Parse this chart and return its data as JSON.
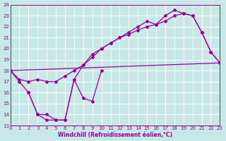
{
  "xlabel": "Windchill (Refroidissement éolien,°C)",
  "xlim": [
    0,
    23
  ],
  "ylim": [
    13,
    24
  ],
  "xticks": [
    0,
    1,
    2,
    3,
    4,
    5,
    6,
    7,
    8,
    9,
    10,
    11,
    12,
    13,
    14,
    15,
    16,
    17,
    18,
    19,
    20,
    21,
    22,
    23
  ],
  "yticks": [
    13,
    14,
    15,
    16,
    17,
    18,
    19,
    20,
    21,
    22,
    23,
    24
  ],
  "bg_color": "#c8e8e8",
  "line_color": "#990099",
  "grid_color": "#ffffff",
  "line1_x": [
    0,
    1,
    2,
    3,
    4,
    5,
    6,
    7,
    8,
    9,
    10,
    11,
    12,
    13,
    14,
    15,
    16,
    17,
    18,
    19,
    20,
    21,
    22,
    23
  ],
  "line1_y": [
    18.0,
    17.0,
    16.0,
    14.0,
    14.0,
    13.5,
    13.5,
    17.2,
    18.5,
    19.5,
    20.0,
    20.5,
    21.0,
    21.5,
    22.0,
    22.5,
    22.2,
    23.0,
    23.5,
    23.2,
    23.0,
    21.5,
    19.7,
    18.7
  ],
  "line2_x": [
    0,
    1,
    2,
    3,
    4,
    5,
    6,
    7,
    8,
    9,
    10,
    11,
    12,
    13,
    14,
    15,
    16,
    17,
    18,
    19,
    20,
    21,
    22,
    23
  ],
  "line2_y": [
    18.0,
    17.2,
    17.0,
    17.2,
    17.0,
    17.0,
    17.5,
    18.0,
    18.5,
    19.2,
    20.0,
    20.5,
    21.0,
    21.3,
    21.7,
    22.0,
    22.2,
    22.5,
    23.0,
    23.2,
    23.0,
    21.5,
    19.7,
    18.7
  ],
  "line3_x": [
    2,
    3,
    4,
    5,
    6,
    7,
    8,
    9,
    10
  ],
  "line3_y": [
    16.0,
    14.0,
    13.5,
    13.5,
    13.5,
    17.2,
    15.5,
    15.2,
    18.0
  ],
  "line4_x": [
    0,
    23
  ],
  "line4_y": [
    18.0,
    18.7
  ]
}
